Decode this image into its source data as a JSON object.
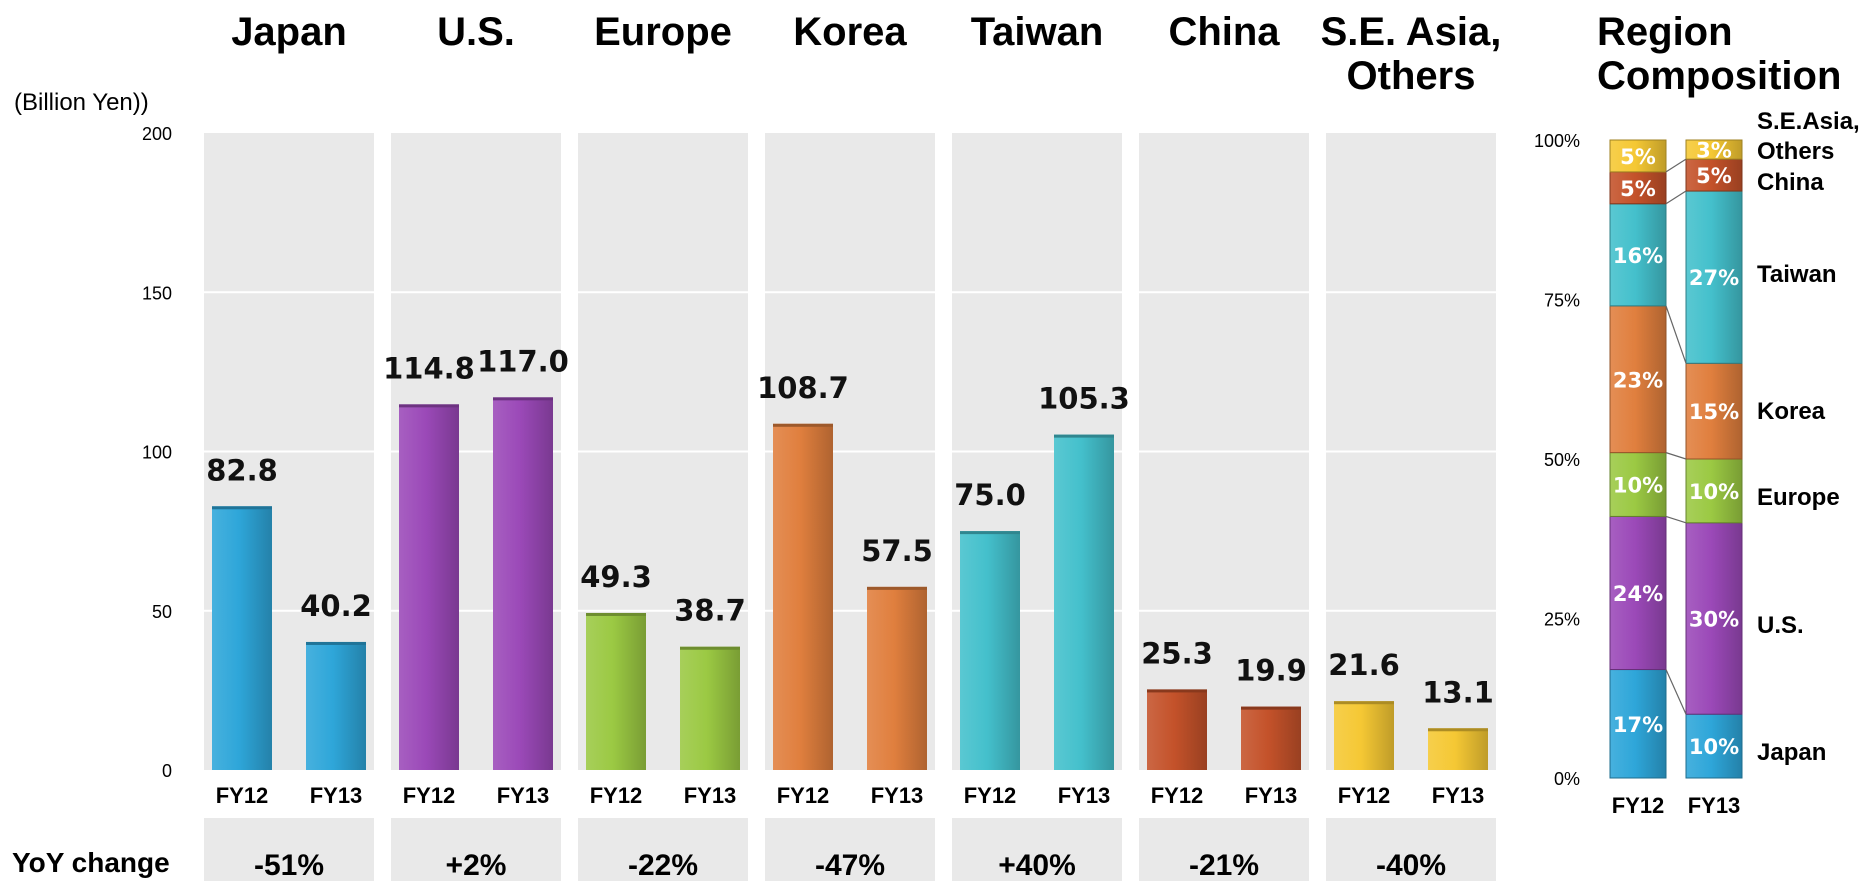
{
  "colors": {
    "japan": "#2ea6d9",
    "us": "#9b49b8",
    "europe": "#9bc943",
    "korea": "#e07f3e",
    "taiwan": "#44c0cc",
    "china": "#c4522a",
    "seasia": "#f5c834",
    "panel": "#e9e9e9"
  },
  "unit_label": "(Billion Yen))",
  "yoy_label": "YoY change",
  "composition_title": [
    "Region",
    "Composition"
  ],
  "chart_data": [
    {
      "type": "bar",
      "title": "",
      "ylabel": "(Billion Yen))",
      "ylim": [
        0,
        200
      ],
      "yticks": [
        "0",
        "50",
        "100",
        "150",
        "200"
      ],
      "grid": true,
      "groups": [
        {
          "name": [
            "Japan"
          ],
          "color": "japan",
          "categories": [
            "FY12",
            "FY13"
          ],
          "values": [
            82.8,
            40.2
          ],
          "labels": [
            "82.8",
            "40.2"
          ],
          "yoy": "-51%"
        },
        {
          "name": [
            "U.S."
          ],
          "color": "us",
          "categories": [
            "FY12",
            "FY13"
          ],
          "values": [
            114.8,
            117.0
          ],
          "labels": [
            "114.8",
            "117.0"
          ],
          "yoy": "+2%"
        },
        {
          "name": [
            "Europe"
          ],
          "color": "europe",
          "categories": [
            "FY12",
            "FY13"
          ],
          "values": [
            49.3,
            38.7
          ],
          "labels": [
            "49.3",
            "38.7"
          ],
          "yoy": "-22%"
        },
        {
          "name": [
            "Korea"
          ],
          "color": "korea",
          "categories": [
            "FY12",
            "FY13"
          ],
          "values": [
            108.7,
            57.5
          ],
          "labels": [
            "108.7",
            "57.5"
          ],
          "yoy": "-47%"
        },
        {
          "name": [
            "Taiwan"
          ],
          "color": "taiwan",
          "categories": [
            "FY12",
            "FY13"
          ],
          "values": [
            75.0,
            105.3
          ],
          "labels": [
            "75.0",
            "105.3"
          ],
          "yoy": "+40%"
        },
        {
          "name": [
            "China"
          ],
          "color": "china",
          "categories": [
            "FY12",
            "FY13"
          ],
          "values": [
            25.3,
            19.9
          ],
          "labels": [
            "25.3",
            "19.9"
          ],
          "yoy": "-21%"
        },
        {
          "name": [
            "S.E. Asia,",
            "Others"
          ],
          "color": "seasia",
          "categories": [
            "FY12",
            "FY13"
          ],
          "values": [
            21.6,
            13.1
          ],
          "labels": [
            "21.6",
            "13.1"
          ],
          "yoy": "-40%"
        }
      ]
    },
    {
      "type": "bar",
      "stacked": true,
      "title": "Region Composition",
      "ylim": [
        0,
        100
      ],
      "yticks": [
        "0%",
        "25%",
        "50%",
        "75%",
        "100%"
      ],
      "categories": [
        "FY12",
        "FY13"
      ],
      "series": [
        {
          "name": [
            "Japan"
          ],
          "color": "japan",
          "values": [
            17,
            10
          ]
        },
        {
          "name": [
            "U.S."
          ],
          "color": "us",
          "values": [
            24,
            30
          ]
        },
        {
          "name": [
            "Europe"
          ],
          "color": "europe",
          "values": [
            10,
            10
          ]
        },
        {
          "name": [
            "Korea"
          ],
          "color": "korea",
          "values": [
            23,
            15
          ]
        },
        {
          "name": [
            "Taiwan"
          ],
          "color": "taiwan",
          "values": [
            16,
            27
          ]
        },
        {
          "name": [
            "China"
          ],
          "color": "china",
          "values": [
            5,
            5
          ]
        },
        {
          "name": [
            "S.E.Asia,",
            "Others"
          ],
          "color": "seasia",
          "values": [
            5,
            3
          ]
        }
      ]
    }
  ]
}
